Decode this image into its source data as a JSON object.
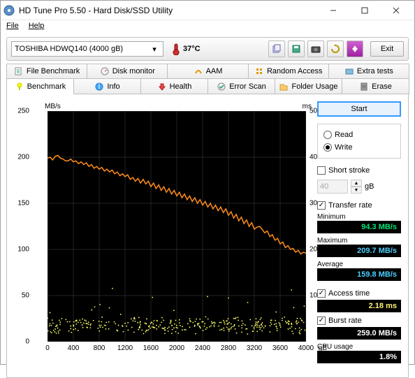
{
  "window": {
    "title": "HD Tune Pro 5.50 - Hard Disk/SSD Utility"
  },
  "menu": {
    "file": "File",
    "help": "Help"
  },
  "toolbar": {
    "drive": "TOSHIBA HDWQ140 (4000 gB)",
    "temp": "37°C",
    "exit": "Exit"
  },
  "tabs_row1": [
    "File Benchmark",
    "Disk monitor",
    "AAM",
    "Random Access",
    "Extra tests"
  ],
  "tabs_row2": [
    "Benchmark",
    "Info",
    "Health",
    "Error Scan",
    "Folder Usage",
    "Erase"
  ],
  "chart": {
    "ylabel_left": "MB/s",
    "ylabel_right": "ms",
    "yticks_left": [
      0,
      50,
      100,
      150,
      200,
      250
    ],
    "yticks_right": [
      10,
      20,
      30,
      40,
      50
    ],
    "xticks": [
      0,
      400,
      800,
      1200,
      1600,
      2000,
      2400,
      2800,
      3200,
      3600,
      4000
    ],
    "xunit": "gB",
    "line_color": "#ff8c1a",
    "scatter_color": "#ffff66",
    "transfer": [
      [
        0,
        199
      ],
      [
        40,
        200
      ],
      [
        80,
        197
      ],
      [
        120,
        201
      ],
      [
        160,
        202
      ],
      [
        200,
        199
      ],
      [
        240,
        198
      ],
      [
        280,
        196
      ],
      [
        320,
        196
      ],
      [
        360,
        198
      ],
      [
        400,
        195
      ],
      [
        440,
        196
      ],
      [
        480,
        193
      ],
      [
        520,
        195
      ],
      [
        560,
        192
      ],
      [
        600,
        194
      ],
      [
        640,
        190
      ],
      [
        680,
        192
      ],
      [
        720,
        188
      ],
      [
        760,
        190
      ],
      [
        800,
        187
      ],
      [
        840,
        189
      ],
      [
        880,
        185
      ],
      [
        920,
        187
      ],
      [
        960,
        184
      ],
      [
        1000,
        186
      ],
      [
        1040,
        182
      ],
      [
        1080,
        184
      ],
      [
        1120,
        180
      ],
      [
        1160,
        182
      ],
      [
        1200,
        179
      ],
      [
        1240,
        181
      ],
      [
        1280,
        176
      ],
      [
        1320,
        178
      ],
      [
        1360,
        174
      ],
      [
        1400,
        177
      ],
      [
        1440,
        172
      ],
      [
        1480,
        176
      ],
      [
        1520,
        171
      ],
      [
        1560,
        174
      ],
      [
        1600,
        168
      ],
      [
        1640,
        172
      ],
      [
        1680,
        166
      ],
      [
        1720,
        170
      ],
      [
        1760,
        164
      ],
      [
        1800,
        168
      ],
      [
        1840,
        162
      ],
      [
        1880,
        166
      ],
      [
        1920,
        160
      ],
      [
        1960,
        164
      ],
      [
        2000,
        158
      ],
      [
        2040,
        162
      ],
      [
        2080,
        156
      ],
      [
        2120,
        160
      ],
      [
        2160,
        154
      ],
      [
        2200,
        158
      ],
      [
        2240,
        152
      ],
      [
        2280,
        156
      ],
      [
        2320,
        150
      ],
      [
        2360,
        154
      ],
      [
        2400,
        148
      ],
      [
        2440,
        152
      ],
      [
        2480,
        146
      ],
      [
        2520,
        150
      ],
      [
        2560,
        144
      ],
      [
        2600,
        148
      ],
      [
        2640,
        142
      ],
      [
        2680,
        146
      ],
      [
        2720,
        140
      ],
      [
        2760,
        144
      ],
      [
        2800,
        137
      ],
      [
        2840,
        141
      ],
      [
        2880,
        134
      ],
      [
        2920,
        138
      ],
      [
        2960,
        131
      ],
      [
        3000,
        135
      ],
      [
        3040,
        128
      ],
      [
        3080,
        132
      ],
      [
        3120,
        125
      ],
      [
        3160,
        129
      ],
      [
        3200,
        122
      ],
      [
        3240,
        124
      ],
      [
        3280,
        125
      ],
      [
        3320,
        122
      ],
      [
        3360,
        118
      ],
      [
        3400,
        120
      ],
      [
        3440,
        114
      ],
      [
        3480,
        116
      ],
      [
        3520,
        110
      ],
      [
        3560,
        112
      ],
      [
        3600,
        106
      ],
      [
        3640,
        108
      ],
      [
        3680,
        102
      ],
      [
        3720,
        104
      ],
      [
        3760,
        100
      ],
      [
        3800,
        101
      ],
      [
        3840,
        97
      ],
      [
        3880,
        99
      ],
      [
        3920,
        95
      ],
      [
        3960,
        97
      ],
      [
        4000,
        96
      ]
    ]
  },
  "sidebar": {
    "start": "Start",
    "read": "Read",
    "write": "Write",
    "short_stroke": "Short stroke",
    "stroke_val": "40",
    "stroke_unit": "gB",
    "transfer_rate": "Transfer rate",
    "minimum": "Minimum",
    "min_val": "94.3 MB/s",
    "maximum": "Maximum",
    "max_val": "209.7 MB/s",
    "average": "Average",
    "avg_val": "159.8 MB/s",
    "access_time": "Access time",
    "access_val": "2.18 ms",
    "burst_rate": "Burst rate",
    "burst_val": "259.0 MB/s",
    "cpu_usage": "CPU usage",
    "cpu_val": "1.8%"
  }
}
